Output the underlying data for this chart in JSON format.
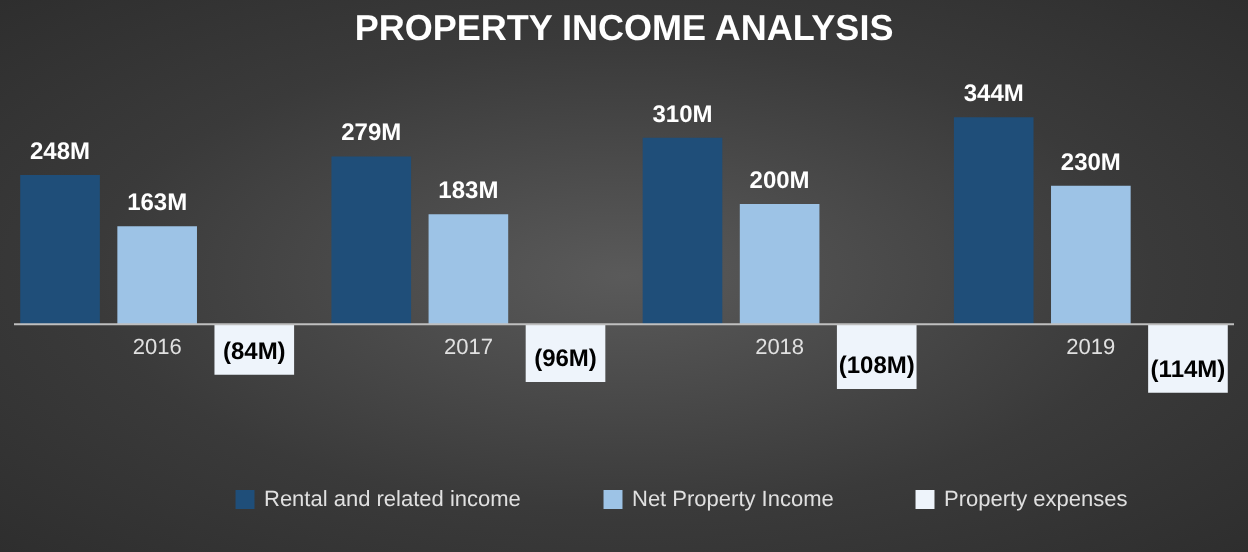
{
  "chart_data": {
    "type": "bar",
    "title": "PROPERTY INCOME ANALYSIS",
    "categories": [
      "2016",
      "2017",
      "2018",
      "2019"
    ],
    "series": [
      {
        "name": "Rental and related income",
        "color": "#1f4e79",
        "values": [
          248,
          279,
          310,
          344
        ],
        "value_labels": [
          "248M",
          "279M",
          "310M",
          "344M"
        ]
      },
      {
        "name": "Net Property Income",
        "color": "#9dc3e6",
        "values": [
          163,
          183,
          200,
          230
        ],
        "value_labels": [
          "163M",
          "183M",
          "200M",
          "230M"
        ]
      },
      {
        "name": "Property expenses",
        "color": "#eef4fb",
        "values": [
          -84,
          -96,
          -108,
          -114
        ],
        "value_labels": [
          "(84M)",
          "(96M)",
          "(108M)",
          "(114M)"
        ]
      }
    ],
    "legend": "bottom"
  }
}
